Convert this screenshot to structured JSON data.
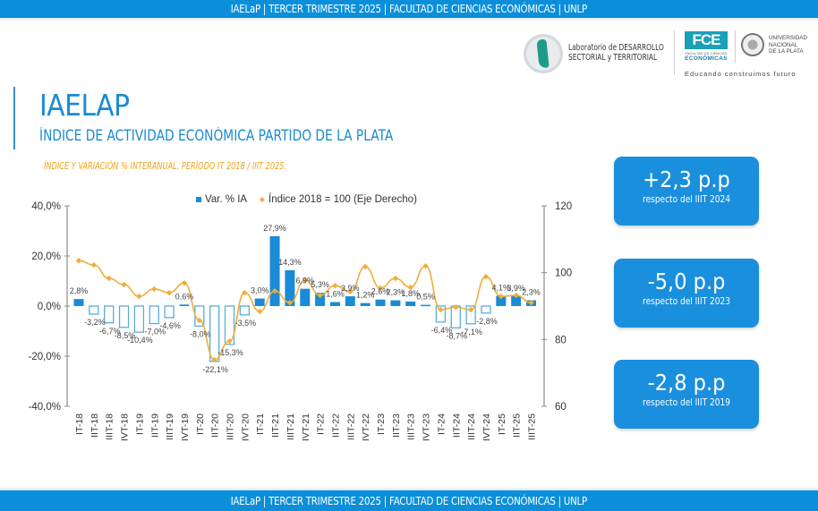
{
  "header": {
    "text": "IAELaP  |  TERCER TRIMESTRE 2025  |  FACULTAD DE CIENCIAS ECONÓMICAS  |  UNLP"
  },
  "footer": {
    "text": "IAELaP  |  TERCER TRIMESTRE 2025  |  FACULTAD DE CIENCIAS ECONÓMICAS  |  UNLP"
  },
  "logos": {
    "lab_line1": "Laboratorio de DESARROLLO",
    "lab_line2": "SECTORIAL y TERRITORIAL",
    "fce_mark": "FCE",
    "fce_small": "FACULTAD DE CIENCIAS",
    "fce_eco": "ECONÓMICAS",
    "unlp_line1": "UNIVERSIDAD",
    "unlp_line2": "NACIONAL",
    "unlp_line3": "DE LA PLATA",
    "tagline": "Educando construimos futuro"
  },
  "title": "IAELAP",
  "subtitle": "ÍNDICE DE ACTIVIDAD ECONÓMICA PARTIDO DE LA PLATA",
  "chart_description": "ÍNDICE Y VARIACIÓN % INTERANUAL. PERÍODO IT 2018 / IIIT 2025.",
  "kpis": [
    {
      "value": "+2,3 p.p",
      "label": "respecto del IIIT 2024"
    },
    {
      "value": "-5,0 p.p",
      "label": "respecto del IIIT 2023"
    },
    {
      "value": "-2,8 p.p",
      "label": "respecto del IIIT 2019"
    }
  ],
  "colors": {
    "brand_blue": "#0b8fdb",
    "bar_positive": "#1a8bd6",
    "bar_negative_stroke": "#5aaed6",
    "index_line": "#f0ad3a",
    "accent_orange": "#f0a21c"
  },
  "chart_data": {
    "type": "bar",
    "title": "",
    "categories": [
      "IT-18",
      "IIT-18",
      "IIIT-18",
      "IVT-18",
      "IT-19",
      "IIT-19",
      "IIIT-19",
      "IVT-19",
      "IT-20",
      "IIT-20",
      "IIIT-20",
      "IVT-20",
      "IT-21",
      "IIT-21",
      "IIIT-21",
      "IVT-21",
      "IT-22",
      "IIT-22",
      "IIIT-22",
      "IVT-22",
      "IT-23",
      "IIT-23",
      "IIIT-23",
      "IVT-23",
      "IT-24",
      "IIT-24",
      "IIIT-24",
      "IVT-24",
      "IT-25",
      "IIT-25",
      "IIIT-25"
    ],
    "series": [
      {
        "name": "Var. % IA",
        "type": "bar",
        "axis": "left",
        "values": [
          2.8,
          -3.2,
          -6.7,
          -8.5,
          -10.4,
          -7.0,
          -4.6,
          0.6,
          -8.0,
          -22.1,
          -15.3,
          -3.5,
          3.0,
          27.9,
          14.3,
          6.9,
          5.3,
          1.6,
          3.9,
          1.2,
          2.6,
          2.3,
          1.8,
          0.5,
          -6.4,
          -8.7,
          -7.1,
          -2.8,
          4.1,
          3.9,
          2.3
        ],
        "labels": [
          "2,8%",
          "-3,2%",
          "-6,7%",
          "-8,5%",
          "-10,4%",
          "-7,0%",
          "-4,6%",
          "0,6%",
          "-8,0%",
          "-22,1%",
          "-15,3%",
          "-3,5%",
          "3,0%",
          "27,9%",
          "14,3%",
          "6,9%",
          "5,3%",
          "1,6%",
          "3,9%",
          "1,2%",
          "2,6%",
          "2,3%",
          "1,8%",
          "0,5%",
          "-6,4%",
          "-8,7%",
          "-7,1%",
          "-2,8%",
          "4,1%",
          "3,9%",
          "2,3%"
        ]
      },
      {
        "name": "Índice 2018 = 100 (Eje Derecho)",
        "type": "line",
        "axis": "right",
        "values": [
          103.6,
          102.3,
          98.3,
          96.4,
          92.9,
          95.1,
          94.0,
          96.9,
          85.7,
          73.9,
          79.5,
          94.0,
          88.4,
          94.5,
          91.0,
          97.7,
          93.2,
          96.1,
          94.3,
          101.8,
          95.4,
          98.3,
          95.6,
          102.0,
          88.9,
          89.7,
          88.9,
          98.8,
          92.9,
          93.2,
          91.0
        ]
      }
    ],
    "y_left": {
      "ylim": [
        -40,
        40
      ],
      "ticks": [
        40,
        20,
        0,
        -20,
        -40
      ],
      "tick_labels": [
        "40,0%",
        "20,0%",
        "0,0%",
        "-20,0%",
        "-40,0%"
      ]
    },
    "y_right": {
      "ylim": [
        60,
        120
      ],
      "ticks": [
        120,
        100,
        80,
        60
      ],
      "tick_labels": [
        "120",
        "100",
        "80",
        "60"
      ]
    },
    "xlabel": "",
    "ylabel": "",
    "legend": {
      "position": "top-center",
      "entries": [
        "Var. % IA",
        "Índice 2018 = 100 (Eje Derecho)"
      ]
    },
    "grid": false
  }
}
